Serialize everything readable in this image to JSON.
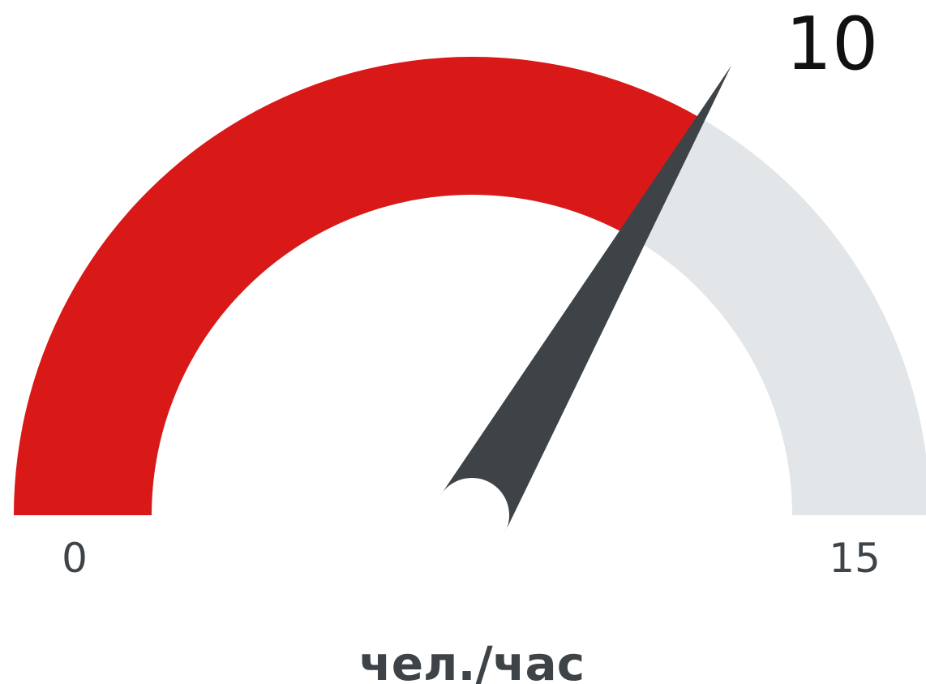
{
  "chart_data": {
    "type": "gauge",
    "value": 10,
    "min": 0,
    "max": 15,
    "unit": "чел./час",
    "value_label": "10",
    "min_label": "0",
    "max_label": "15",
    "colors": {
      "fill": "#d91818",
      "track": "#e2e6e8",
      "needle": "#3d4347",
      "value_text": "#111111",
      "tick_text": "#3f4448",
      "unit_text": "#3d4347"
    }
  }
}
